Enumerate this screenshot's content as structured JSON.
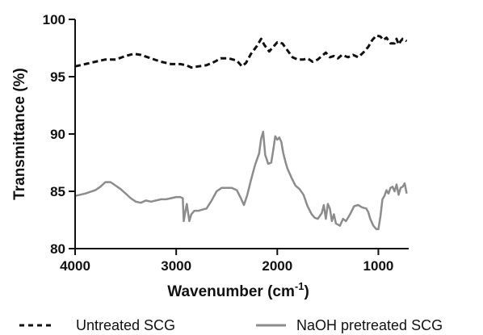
{
  "chart_data": {
    "type": "line",
    "xlabel": "Wavenumber (cm",
    "xlabel_sup": "-1",
    "xlabel_end": ")",
    "ylabel": "Transmittance (%)",
    "xlim": [
      4000,
      700
    ],
    "x_reversed": true,
    "ylim": [
      80,
      100
    ],
    "x_ticks": [
      4000,
      3000,
      2000,
      1000
    ],
    "x_tick_labels": [
      "4000",
      "3000",
      "2000",
      "1000"
    ],
    "y_ticks": [
      80,
      85,
      90,
      95,
      100
    ],
    "y_tick_labels": [
      "80",
      "85",
      "90",
      "95",
      "100"
    ],
    "grid": false,
    "legend_position": "bottom",
    "series": [
      {
        "name": "Untreated SCG",
        "style": "dashed",
        "color": "#111111",
        "points": [
          [
            4000,
            95.9
          ],
          [
            3900,
            96.1
          ],
          [
            3800,
            96.3
          ],
          [
            3700,
            96.5
          ],
          [
            3600,
            96.5
          ],
          [
            3500,
            96.8
          ],
          [
            3420,
            97.0
          ],
          [
            3350,
            96.9
          ],
          [
            3250,
            96.6
          ],
          [
            3150,
            96.3
          ],
          [
            3050,
            96.1
          ],
          [
            2960,
            96.1
          ],
          [
            2900,
            96.0
          ],
          [
            2850,
            95.8
          ],
          [
            2780,
            95.9
          ],
          [
            2700,
            96.0
          ],
          [
            2620,
            96.3
          ],
          [
            2560,
            96.6
          ],
          [
            2480,
            96.6
          ],
          [
            2400,
            96.4
          ],
          [
            2350,
            95.9
          ],
          [
            2310,
            96.2
          ],
          [
            2260,
            97.0
          ],
          [
            2200,
            97.7
          ],
          [
            2160,
            98.3
          ],
          [
            2130,
            97.8
          ],
          [
            2080,
            97.2
          ],
          [
            2040,
            97.6
          ],
          [
            2000,
            98.0
          ],
          [
            1950,
            97.9
          ],
          [
            1900,
            97.3
          ],
          [
            1850,
            96.7
          ],
          [
            1800,
            96.5
          ],
          [
            1740,
            96.5
          ],
          [
            1700,
            96.6
          ],
          [
            1650,
            96.3
          ],
          [
            1600,
            96.5
          ],
          [
            1560,
            96.8
          ],
          [
            1520,
            97.1
          ],
          [
            1480,
            96.7
          ],
          [
            1440,
            96.8
          ],
          [
            1400,
            96.6
          ],
          [
            1360,
            96.9
          ],
          [
            1300,
            96.7
          ],
          [
            1250,
            96.9
          ],
          [
            1200,
            96.7
          ],
          [
            1150,
            97.1
          ],
          [
            1100,
            97.6
          ],
          [
            1060,
            98.2
          ],
          [
            1020,
            98.6
          ],
          [
            980,
            98.5
          ],
          [
            950,
            98.2
          ],
          [
            920,
            98.4
          ],
          [
            880,
            97.9
          ],
          [
            840,
            97.9
          ],
          [
            820,
            98.3
          ],
          [
            800,
            97.8
          ],
          [
            780,
            98.1
          ],
          [
            760,
            98.3
          ],
          [
            740,
            98.2
          ],
          [
            720,
            98.1
          ]
        ]
      },
      {
        "name": "NaOH pretreated SCG",
        "style": "solid",
        "color": "#8c8c8c",
        "points": [
          [
            4000,
            84.6
          ],
          [
            3900,
            84.8
          ],
          [
            3800,
            85.1
          ],
          [
            3750,
            85.4
          ],
          [
            3700,
            85.8
          ],
          [
            3650,
            85.8
          ],
          [
            3600,
            85.5
          ],
          [
            3550,
            85.2
          ],
          [
            3500,
            84.8
          ],
          [
            3450,
            84.4
          ],
          [
            3400,
            84.1
          ],
          [
            3350,
            84.0
          ],
          [
            3300,
            84.2
          ],
          [
            3250,
            84.1
          ],
          [
            3200,
            84.2
          ],
          [
            3150,
            84.3
          ],
          [
            3100,
            84.3
          ],
          [
            3050,
            84.4
          ],
          [
            3000,
            84.5
          ],
          [
            2960,
            84.5
          ],
          [
            2935,
            84.4
          ],
          [
            2925,
            82.4
          ],
          [
            2910,
            83.2
          ],
          [
            2895,
            83.9
          ],
          [
            2870,
            82.4
          ],
          [
            2850,
            83.0
          ],
          [
            2820,
            83.3
          ],
          [
            2780,
            83.3
          ],
          [
            2700,
            83.5
          ],
          [
            2650,
            84.2
          ],
          [
            2600,
            85.0
          ],
          [
            2550,
            85.3
          ],
          [
            2500,
            85.3
          ],
          [
            2450,
            85.3
          ],
          [
            2400,
            85.1
          ],
          [
            2360,
            84.4
          ],
          [
            2330,
            83.8
          ],
          [
            2300,
            84.6
          ],
          [
            2260,
            86.0
          ],
          [
            2220,
            87.3
          ],
          [
            2180,
            88.3
          ],
          [
            2160,
            89.6
          ],
          [
            2140,
            90.2
          ],
          [
            2120,
            88.2
          ],
          [
            2090,
            87.4
          ],
          [
            2060,
            87.5
          ],
          [
            2040,
            88.6
          ],
          [
            2020,
            89.8
          ],
          [
            2000,
            89.5
          ],
          [
            1980,
            89.7
          ],
          [
            1960,
            89.3
          ],
          [
            1940,
            88.3
          ],
          [
            1920,
            87.6
          ],
          [
            1900,
            87.0
          ],
          [
            1860,
            86.2
          ],
          [
            1820,
            85.5
          ],
          [
            1780,
            85.2
          ],
          [
            1740,
            84.7
          ],
          [
            1700,
            83.7
          ],
          [
            1660,
            83.0
          ],
          [
            1630,
            82.7
          ],
          [
            1600,
            82.6
          ],
          [
            1560,
            83.1
          ],
          [
            1540,
            83.8
          ],
          [
            1520,
            82.6
          ],
          [
            1500,
            83.9
          ],
          [
            1480,
            83.5
          ],
          [
            1460,
            82.4
          ],
          [
            1440,
            83.0
          ],
          [
            1420,
            82.2
          ],
          [
            1380,
            82.0
          ],
          [
            1350,
            82.6
          ],
          [
            1320,
            82.4
          ],
          [
            1280,
            83.0
          ],
          [
            1240,
            83.7
          ],
          [
            1200,
            83.8
          ],
          [
            1160,
            83.6
          ],
          [
            1120,
            83.5
          ],
          [
            1100,
            83.2
          ],
          [
            1080,
            82.6
          ],
          [
            1050,
            82.0
          ],
          [
            1020,
            81.7
          ],
          [
            1000,
            81.7
          ],
          [
            980,
            82.8
          ],
          [
            960,
            84.3
          ],
          [
            940,
            84.6
          ],
          [
            920,
            85.1
          ],
          [
            900,
            84.8
          ],
          [
            880,
            85.3
          ],
          [
            860,
            85.4
          ],
          [
            840,
            85.0
          ],
          [
            820,
            85.6
          ],
          [
            800,
            84.7
          ],
          [
            780,
            85.3
          ],
          [
            760,
            85.4
          ],
          [
            740,
            85.7
          ],
          [
            720,
            84.8
          ]
        ]
      }
    ]
  }
}
